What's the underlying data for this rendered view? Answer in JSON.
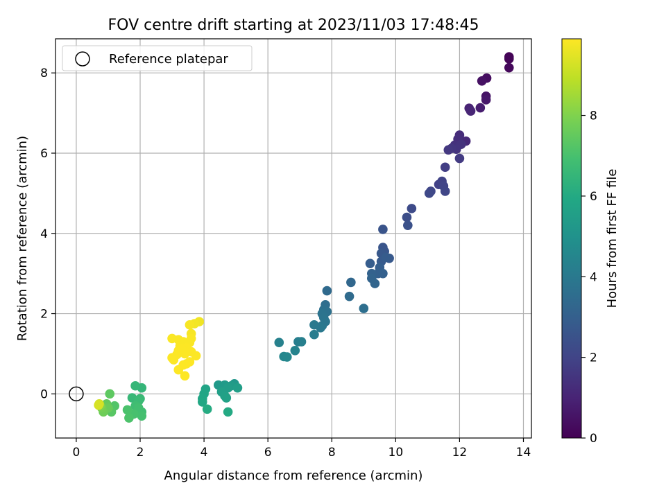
{
  "chart_data": {
    "type": "scatter",
    "title": "FOV centre drift starting at 2023/11/03 17:48:45",
    "xlabel": "Angular distance from reference (arcmin)",
    "ylabel": "Rotation from reference (arcmin)",
    "colorbar_label": "Hours from first FF file",
    "xlim": [
      -0.65,
      14.25
    ],
    "ylim": [
      -1.1,
      8.85
    ],
    "clim": [
      0,
      9.9
    ],
    "colormap": "viridis",
    "grid": true,
    "legend_position": "upper left",
    "xticks": [
      0,
      2,
      4,
      6,
      8,
      10,
      12,
      14
    ],
    "yticks": [
      0,
      2,
      4,
      6,
      8
    ],
    "colorbar_ticks": [
      0,
      2,
      4,
      6,
      8
    ],
    "reference": {
      "label": "Reference platepar",
      "x": 0,
      "y": 0,
      "marker": "open-circle"
    },
    "points": [
      [
        13.55,
        8.4,
        0.05
      ],
      [
        13.55,
        8.35,
        0.1
      ],
      [
        13.55,
        8.13,
        0.2
      ],
      [
        12.85,
        7.87,
        0.35
      ],
      [
        12.7,
        7.8,
        0.45
      ],
      [
        12.83,
        7.42,
        0.55
      ],
      [
        12.83,
        7.33,
        0.65
      ],
      [
        12.65,
        7.13,
        0.8
      ],
      [
        12.3,
        7.12,
        0.95
      ],
      [
        12.35,
        7.05,
        1.05
      ],
      [
        12.2,
        6.3,
        1.15
      ],
      [
        12.0,
        6.45,
        1.25
      ],
      [
        11.95,
        6.35,
        1.3
      ],
      [
        11.85,
        6.2,
        1.38
      ],
      [
        12.05,
        6.22,
        1.45
      ],
      [
        11.9,
        6.1,
        1.5
      ],
      [
        11.75,
        6.12,
        1.55
      ],
      [
        11.65,
        6.08,
        1.6
      ],
      [
        12.0,
        5.87,
        1.7
      ],
      [
        11.55,
        5.65,
        1.8
      ],
      [
        11.35,
        5.22,
        1.9
      ],
      [
        11.45,
        5.3,
        1.95
      ],
      [
        11.5,
        5.18,
        2.0
      ],
      [
        11.55,
        5.05,
        2.05
      ],
      [
        11.1,
        5.05,
        2.1
      ],
      [
        11.05,
        5.0,
        2.15
      ],
      [
        10.5,
        4.62,
        2.25
      ],
      [
        10.35,
        4.4,
        2.35
      ],
      [
        10.38,
        4.2,
        2.45
      ],
      [
        9.6,
        4.1,
        2.55
      ],
      [
        9.6,
        3.65,
        2.6
      ],
      [
        9.65,
        3.55,
        2.65
      ],
      [
        9.55,
        3.5,
        2.7
      ],
      [
        9.8,
        3.38,
        2.75
      ],
      [
        9.55,
        3.3,
        2.8
      ],
      [
        9.7,
        3.4,
        2.85
      ],
      [
        9.2,
        3.25,
        2.9
      ],
      [
        9.5,
        3.15,
        2.95
      ],
      [
        9.45,
        3.0,
        3.0
      ],
      [
        9.6,
        3.0,
        3.05
      ],
      [
        9.25,
        3.0,
        3.1
      ],
      [
        9.25,
        2.88,
        3.15
      ],
      [
        9.35,
        2.75,
        3.2
      ],
      [
        8.6,
        2.78,
        3.3
      ],
      [
        7.85,
        2.57,
        3.4
      ],
      [
        8.55,
        2.43,
        3.45
      ],
      [
        7.8,
        2.22,
        3.55
      ],
      [
        9.0,
        2.13,
        3.6
      ],
      [
        7.75,
        2.1,
        3.65
      ],
      [
        7.85,
        2.05,
        3.7
      ],
      [
        7.7,
        2.0,
        3.75
      ],
      [
        7.75,
        1.9,
        3.8
      ],
      [
        7.8,
        1.8,
        3.85
      ],
      [
        7.7,
        1.7,
        3.9
      ],
      [
        7.65,
        1.65,
        3.95
      ],
      [
        7.45,
        1.72,
        4.0
      ],
      [
        7.45,
        1.48,
        4.1
      ],
      [
        6.95,
        1.3,
        4.2
      ],
      [
        7.05,
        1.3,
        4.25
      ],
      [
        6.35,
        1.28,
        4.3
      ],
      [
        6.85,
        1.08,
        4.4
      ],
      [
        6.5,
        0.93,
        4.5
      ],
      [
        6.6,
        0.92,
        4.55
      ],
      [
        4.95,
        0.25,
        5.2
      ],
      [
        4.45,
        0.22,
        5.3
      ],
      [
        4.65,
        0.22,
        5.35
      ],
      [
        4.85,
        0.2,
        5.4
      ],
      [
        4.75,
        0.15,
        5.45
      ],
      [
        5.05,
        0.15,
        5.5
      ],
      [
        4.55,
        0.05,
        5.55
      ],
      [
        4.65,
        -0.05,
        5.6
      ],
      [
        4.7,
        -0.1,
        5.65
      ],
      [
        4.05,
        0.12,
        5.75
      ],
      [
        4.0,
        0.0,
        5.8
      ],
      [
        3.95,
        -0.12,
        5.85
      ],
      [
        3.95,
        -0.2,
        5.9
      ],
      [
        4.75,
        -0.45,
        6.0
      ],
      [
        4.1,
        -0.38,
        6.05
      ],
      [
        2.05,
        0.15,
        6.5
      ],
      [
        1.85,
        0.2,
        6.55
      ],
      [
        1.75,
        -0.1,
        6.6
      ],
      [
        2.0,
        -0.12,
        6.65
      ],
      [
        1.95,
        -0.18,
        6.7
      ],
      [
        1.85,
        -0.3,
        6.8
      ],
      [
        2.05,
        -0.45,
        6.85
      ],
      [
        1.95,
        -0.35,
        6.9
      ],
      [
        2.05,
        -0.55,
        6.95
      ],
      [
        1.8,
        -0.5,
        7.0
      ],
      [
        1.6,
        -0.4,
        7.05
      ],
      [
        1.65,
        -0.6,
        7.1
      ],
      [
        1.2,
        -0.3,
        7.2
      ],
      [
        1.1,
        -0.45,
        7.3
      ],
      [
        1.05,
        0.0,
        7.4
      ],
      [
        0.95,
        -0.25,
        7.5
      ],
      [
        1.0,
        -0.35,
        7.6
      ],
      [
        0.85,
        -0.45,
        7.7
      ],
      [
        0.8,
        -0.35,
        7.8
      ],
      [
        0.75,
        -0.3,
        8.0
      ],
      [
        0.72,
        -0.25,
        9.2
      ],
      [
        0.7,
        -0.28,
        9.3
      ],
      [
        3.85,
        1.8,
        9.7
      ],
      [
        3.7,
        1.75,
        9.75
      ],
      [
        3.55,
        1.72,
        9.8
      ],
      [
        3.6,
        1.5,
        9.8
      ],
      [
        3.6,
        1.38,
        9.85
      ],
      [
        3.0,
        1.38,
        9.85
      ],
      [
        3.2,
        1.35,
        9.85
      ],
      [
        3.35,
        1.3,
        9.85
      ],
      [
        3.55,
        1.28,
        9.85
      ],
      [
        3.25,
        1.2,
        9.85
      ],
      [
        3.45,
        1.15,
        9.88
      ],
      [
        3.3,
        1.12,
        9.88
      ],
      [
        3.2,
        1.08,
        9.88
      ],
      [
        3.4,
        1.0,
        9.88
      ],
      [
        3.6,
        1.05,
        9.88
      ],
      [
        3.15,
        0.98,
        9.88
      ],
      [
        3.0,
        0.9,
        9.88
      ],
      [
        3.05,
        0.85,
        9.88
      ],
      [
        3.75,
        0.95,
        9.88
      ],
      [
        3.45,
        0.75,
        9.88
      ],
      [
        3.35,
        0.72,
        9.9
      ],
      [
        3.2,
        0.6,
        9.9
      ],
      [
        3.4,
        0.45,
        9.9
      ],
      [
        3.55,
        0.8,
        9.9
      ]
    ]
  }
}
